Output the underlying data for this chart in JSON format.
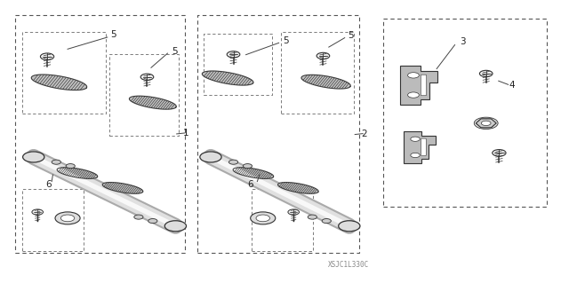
{
  "bg_color": "#ffffff",
  "fig_width": 6.4,
  "fig_height": 3.19,
  "dpi": 100,
  "watermark": "XSJC1L330C",
  "dark": "#333333",
  "gray": "#bbbbbb",
  "lgray": "#cccccc",
  "mgray": "#888888"
}
